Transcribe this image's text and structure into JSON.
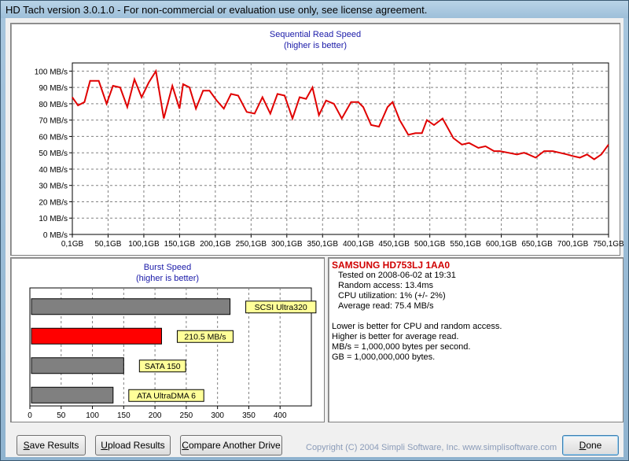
{
  "window": {
    "title": "HD Tach version 3.0.1.0  - For non-commercial or evaluation use only, see license agreement."
  },
  "chart_data": [
    {
      "type": "line",
      "title": "Sequential Read Speed",
      "subtitle": "(higher is better)",
      "ylabel": "",
      "xlabel": "",
      "ylim": [
        0,
        105
      ],
      "xlim": [
        0.1,
        750.1
      ],
      "yticks": [
        0,
        10,
        20,
        30,
        40,
        50,
        60,
        70,
        80,
        90,
        100
      ],
      "ytick_labels": [
        "0 MB/s",
        "10 MB/s",
        "20 MB/s",
        "30 MB/s",
        "40 MB/s",
        "50 MB/s",
        "60 MB/s",
        "70 MB/s",
        "80 MB/s",
        "90 MB/s",
        "100 MB/s"
      ],
      "xticks": [
        0.1,
        50.1,
        100.1,
        150.1,
        200.1,
        250.1,
        300.1,
        350.1,
        400.1,
        450.1,
        500.1,
        550.1,
        600.1,
        650.1,
        700.1,
        750.1
      ],
      "xtick_labels": [
        "0,1GB",
        "50,1GB",
        "100,1GB",
        "150,1GB",
        "200,1GB",
        "250,1GB",
        "300,1GB",
        "350,1GB",
        "400,1GB",
        "450,1GB",
        "500,1GB",
        "550,1GB",
        "600,1GB",
        "650,1GB",
        "700,1GB",
        "750,1GB"
      ],
      "grid": true,
      "series_color": "#e00000",
      "x": [
        0,
        8,
        17,
        25,
        37,
        48,
        57,
        67,
        77,
        87,
        97,
        107,
        117,
        128,
        140,
        150,
        155,
        164,
        173,
        183,
        192,
        202,
        212,
        222,
        232,
        244,
        255,
        266,
        277,
        287,
        297,
        308,
        318,
        327,
        336,
        345,
        355,
        366,
        377,
        390,
        400,
        407,
        418,
        429,
        441,
        448,
        458,
        470,
        480,
        489,
        496,
        506,
        518,
        533,
        545,
        555,
        568,
        578,
        590,
        598,
        610,
        622,
        632,
        638,
        648,
        660,
        672,
        682,
        692,
        700,
        710,
        720,
        730,
        740,
        750
      ],
      "y": [
        84,
        79,
        81,
        94,
        94,
        80,
        91,
        90,
        78,
        95,
        84,
        93,
        100,
        71,
        91,
        77,
        92,
        90,
        77,
        88,
        88,
        82,
        77,
        86,
        85,
        75,
        74,
        84,
        74,
        86,
        85,
        71,
        84,
        83,
        90,
        73,
        82,
        80,
        71,
        81,
        81,
        78,
        67,
        66,
        78,
        81,
        70,
        61,
        62,
        62,
        70,
        67,
        71,
        59,
        55,
        56,
        53,
        54,
        51,
        51,
        50,
        49,
        50,
        49,
        47,
        51,
        51,
        50,
        49,
        48,
        47,
        49,
        46,
        49,
        55
      ]
    },
    {
      "type": "bar",
      "orientation": "horizontal",
      "title": "Burst Speed",
      "subtitle": "(higher is better)",
      "xlim": [
        0,
        450
      ],
      "xticks": [
        0,
        50,
        100,
        150,
        200,
        250,
        300,
        350,
        400
      ],
      "categories": [
        "SCSI Ultra320",
        "210.5 MB/s",
        "SATA 150",
        "ATA UltraDMA 6"
      ],
      "values": [
        320,
        210.5,
        150,
        133
      ],
      "colors": [
        "#808080",
        "#ff0000",
        "#808080",
        "#808080"
      ],
      "label_background": "#ffff99"
    }
  ],
  "info": {
    "drive_name": "SAMSUNG HD753LJ 1AA0",
    "tested_on": "Tested on 2008-06-02 at 19:31",
    "random_access": "Random access: 13.4ms",
    "cpu_utilization": "CPU utilization: 1% (+/- 2%)",
    "average_read": "Average read: 75.4 MB/s",
    "note1": "Lower is better for CPU and random access.",
    "note2": "Higher is better for average read.",
    "note3": "MB/s = 1,000,000 bytes per second.",
    "note4": "GB = 1,000,000,000 bytes."
  },
  "buttons": {
    "save_accel": "S",
    "save_rest": "ave Results",
    "upload_accel": "U",
    "upload_rest": "pload Results",
    "compare_accel": "C",
    "compare_rest": "ompare Another Drive",
    "done_accel": "D",
    "done_rest": "one"
  },
  "footer": {
    "copyright": "Copyright (C) 2004 Simpli Software, Inc. www.simplisoftware.com"
  }
}
